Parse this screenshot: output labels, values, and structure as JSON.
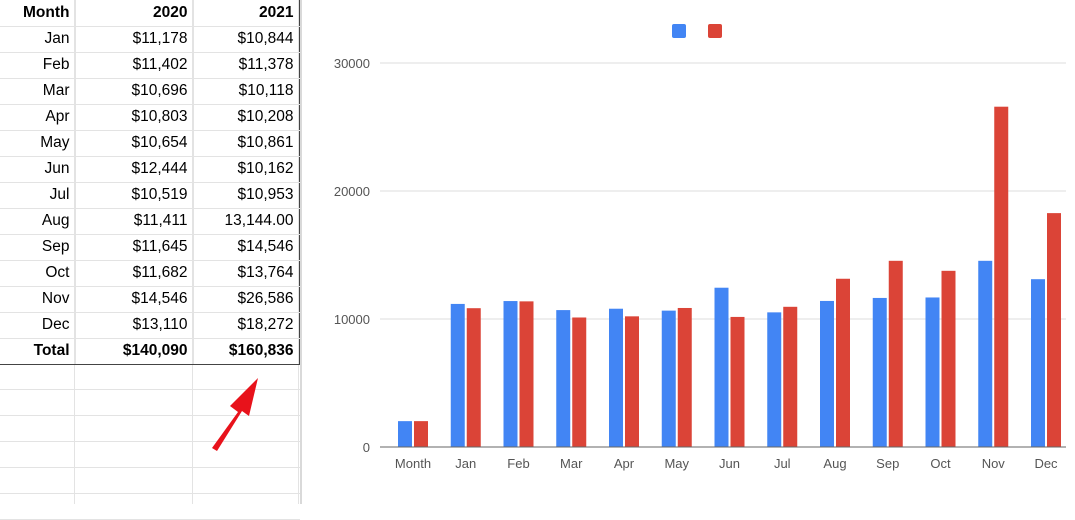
{
  "sheet": {
    "headers": [
      "Month",
      "2020",
      "2021"
    ],
    "rows": [
      [
        "Jan",
        "$11,178",
        "$10,844"
      ],
      [
        "Feb",
        "$11,402",
        "$11,378"
      ],
      [
        "Mar",
        "$10,696",
        "$10,118"
      ],
      [
        "Apr",
        "$10,803",
        "$10,208"
      ],
      [
        "May",
        "$10,654",
        "$10,861"
      ],
      [
        "Jun",
        "$12,444",
        "$10,162"
      ],
      [
        "Jul",
        "$10,519",
        "$10,953"
      ],
      [
        "Aug",
        "$11,411",
        "13,144.00"
      ],
      [
        "Sep",
        "$11,645",
        "$14,546"
      ],
      [
        "Oct",
        "$11,682",
        "$13,764"
      ],
      [
        "Nov",
        "$14,546",
        "$26,586"
      ],
      [
        "Dec",
        "$13,110",
        "$18,272"
      ]
    ],
    "total": [
      "Total",
      "$140,090",
      "$160,836"
    ]
  },
  "annotation": {
    "arrow_color": "#e8121b"
  },
  "chart_data": {
    "type": "bar",
    "categories": [
      "Month",
      "Jan",
      "Feb",
      "Mar",
      "Apr",
      "May",
      "Jun",
      "Jul",
      "Aug",
      "Sep",
      "Oct",
      "Nov",
      "Dec"
    ],
    "series": [
      {
        "color": "#4285f4",
        "values": [
          2020,
          11178,
          11402,
          10696,
          10803,
          10654,
          12444,
          10519,
          11411,
          11645,
          11682,
          14546,
          13110
        ]
      },
      {
        "color": "#db4437",
        "values": [
          2021,
          10844,
          11378,
          10118,
          10208,
          10861,
          10162,
          10953,
          13144,
          14546,
          13764,
          26586,
          18272
        ]
      }
    ],
    "yticks": [
      0,
      10000,
      20000,
      30000
    ],
    "ylim": [
      0,
      30000
    ],
    "grid": true,
    "legend": "top-center"
  }
}
